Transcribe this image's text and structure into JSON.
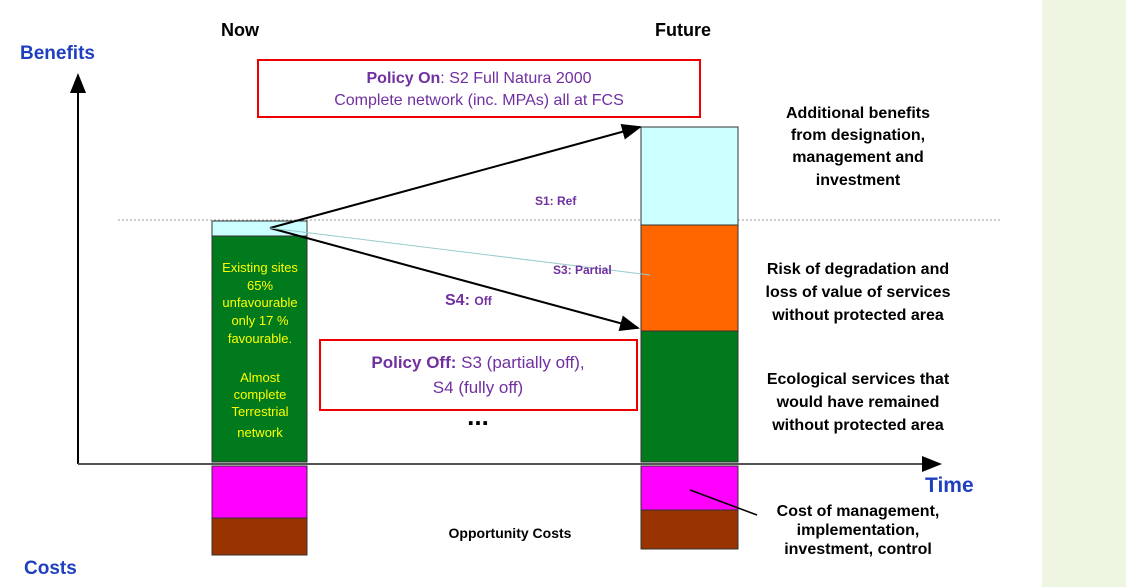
{
  "axes": {
    "benefits": "Benefits",
    "costs": "Costs",
    "time": "Time"
  },
  "columns": {
    "now": "Now",
    "future": "Future"
  },
  "policy_on": {
    "label": "Policy On",
    "line1": ": S2 Full Natura 2000",
    "line2": "Complete network (inc. MPAs) all at FCS"
  },
  "policy_off": {
    "label": "Policy Off:",
    "line1": "S3 (partially off),",
    "line2": "S4 (fully off)"
  },
  "ellipsis": "...",
  "scenarios": {
    "s1": "S1: Ref",
    "s3": "S3: Partial",
    "s4_label": "S4:",
    "s4_text": "Off"
  },
  "now_bar_text": [
    "Existing sites",
    "65%",
    "unfavourable",
    "only 17 %",
    "favourable.",
    "Almost",
    "complete",
    "Terrestrial",
    "network"
  ],
  "legend": {
    "additional": [
      "Additional benefits",
      "from designation,",
      "management and",
      "investment"
    ],
    "risk": [
      "Risk of degradation and",
      "loss of value of services",
      "without protected area"
    ],
    "ecological": [
      "Ecological services that",
      "would have remained",
      "without protected area"
    ],
    "cost": [
      "Cost of management,",
      "implementation,",
      "investment, control"
    ]
  },
  "opportunity_costs": "Opportunity Costs"
}
